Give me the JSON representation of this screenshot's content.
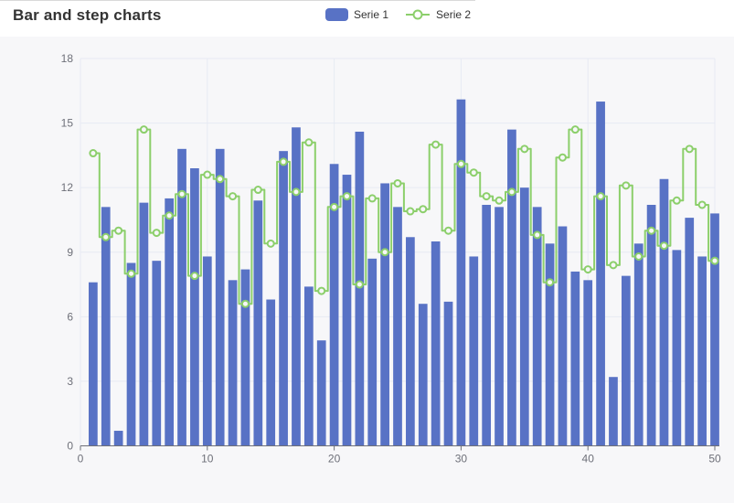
{
  "header": {
    "title": "Bar and step charts"
  },
  "legend": {
    "items": [
      {
        "label": "Serie 1",
        "icon": "bar-swatch"
      },
      {
        "label": "Serie 2",
        "icon": "step-line-swatch"
      }
    ]
  },
  "colors": {
    "bar": "#5872c5",
    "line": "#8ccf6b",
    "marker_fill": "#f7f7f9",
    "grid": "#e7eaf3",
    "axis": "#6e7079",
    "tick_label": "#6e7079",
    "panel_bg": "#f7f7f9",
    "title_text": "#333333"
  },
  "chart_data": {
    "type": "bar",
    "title": "Bar and step charts",
    "xlabel": "",
    "ylabel": "",
    "xlim": [
      0,
      50
    ],
    "ylim": [
      0,
      18
    ],
    "xticks": [
      0,
      10,
      20,
      30,
      40,
      50
    ],
    "yticks": [
      0,
      3,
      6,
      9,
      12,
      15,
      18
    ],
    "grid": true,
    "legend_position": "top",
    "x": [
      1,
      2,
      3,
      4,
      5,
      6,
      7,
      8,
      9,
      10,
      11,
      12,
      13,
      14,
      15,
      16,
      17,
      18,
      19,
      20,
      21,
      22,
      23,
      24,
      25,
      26,
      27,
      28,
      29,
      30,
      31,
      32,
      33,
      34,
      35,
      36,
      37,
      38,
      39,
      40,
      41,
      42,
      43,
      44,
      45,
      46,
      47,
      48,
      49,
      50
    ],
    "series": [
      {
        "name": "Serie 1",
        "type": "bar",
        "color": "#5872c5",
        "values": [
          7.6,
          11.1,
          0.7,
          8.5,
          11.3,
          8.6,
          11.5,
          13.8,
          12.9,
          8.8,
          13.8,
          7.7,
          8.2,
          11.4,
          6.8,
          13.7,
          14.8,
          7.4,
          4.9,
          13.1,
          12.6,
          14.6,
          8.7,
          12.2,
          11.1,
          9.7,
          6.6,
          9.5,
          6.7,
          16.1,
          8.8,
          11.2,
          11.1,
          14.7,
          12.0,
          11.1,
          9.4,
          10.2,
          8.1,
          7.7,
          16.0,
          3.2,
          7.9,
          9.4,
          11.2,
          12.4,
          9.1,
          10.6,
          8.8,
          10.8
        ]
      },
      {
        "name": "Serie 2",
        "type": "line",
        "step": "middle",
        "marker": "hollow-circle",
        "color": "#8ccf6b",
        "values": [
          13.6,
          9.7,
          10.0,
          8.0,
          14.7,
          9.9,
          10.7,
          11.7,
          7.9,
          12.6,
          12.4,
          11.6,
          6.6,
          11.9,
          9.4,
          13.2,
          11.8,
          14.1,
          7.2,
          11.1,
          11.6,
          7.5,
          11.5,
          9.0,
          12.2,
          10.9,
          11.0,
          14.0,
          10.0,
          13.1,
          12.7,
          11.6,
          11.4,
          11.8,
          13.8,
          9.8,
          7.6,
          13.4,
          14.7,
          8.2,
          11.6,
          8.4,
          12.1,
          8.8,
          10.0,
          9.3,
          11.4,
          13.8,
          11.2,
          8.6
        ]
      }
    ]
  }
}
